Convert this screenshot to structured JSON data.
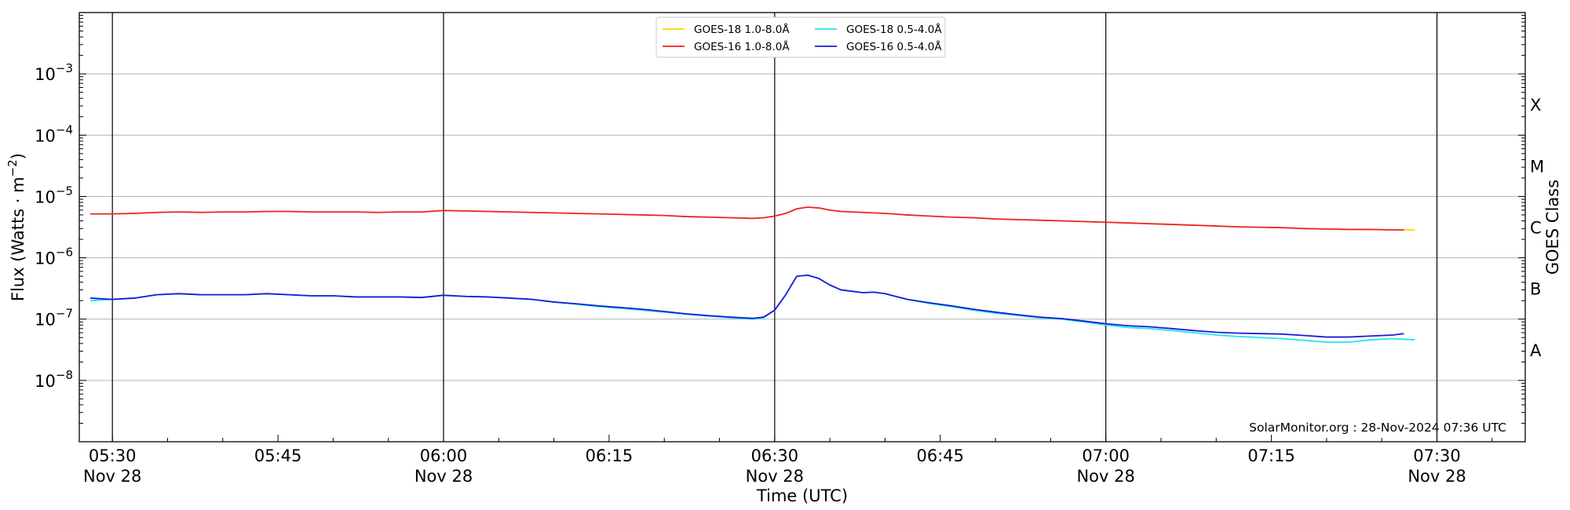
{
  "chart_data": {
    "type": "line",
    "title": "",
    "xlabel": "Time (UTC)",
    "ylabel": "Flux (Watts · m⁻²)",
    "right_label": "GOES Class",
    "y_scale": "log",
    "ylim": [
      1e-09,
      0.01
    ],
    "xlim": [
      "2024-11-28 05:27",
      "2024-11-28 07:38"
    ],
    "y_ticks": [
      {
        "value": 1e-08,
        "base": "10",
        "exp": "−8"
      },
      {
        "value": 1e-07,
        "base": "10",
        "exp": "−7"
      },
      {
        "value": 1e-06,
        "base": "10",
        "exp": "−6"
      },
      {
        "value": 1e-05,
        "base": "10",
        "exp": "−5"
      },
      {
        "value": 0.0001,
        "base": "10",
        "exp": "−4"
      },
      {
        "value": 0.001,
        "base": "10",
        "exp": "−3"
      }
    ],
    "x_ticks": [
      {
        "time": "05:30",
        "label": "05:30",
        "sub": "Nov 28"
      },
      {
        "time": "05:45",
        "label": "05:45",
        "sub": ""
      },
      {
        "time": "06:00",
        "label": "06:00",
        "sub": "Nov 28"
      },
      {
        "time": "06:15",
        "label": "06:15",
        "sub": ""
      },
      {
        "time": "06:30",
        "label": "06:30",
        "sub": "Nov 28"
      },
      {
        "time": "06:45",
        "label": "06:45",
        "sub": ""
      },
      {
        "time": "07:00",
        "label": "07:00",
        "sub": "Nov 28"
      },
      {
        "time": "07:15",
        "label": "07:15",
        "sub": ""
      },
      {
        "time": "07:30",
        "label": "07:30",
        "sub": "Nov 28"
      }
    ],
    "vertical_lines": [
      "05:30",
      "06:00",
      "06:30",
      "07:00",
      "07:30"
    ],
    "goes_classes": [
      {
        "label": "A",
        "value": 3.16e-08
      },
      {
        "label": "B",
        "value": 3.16e-07
      },
      {
        "label": "C",
        "value": 3.16e-06
      },
      {
        "label": "M",
        "value": 3.16e-05
      },
      {
        "label": "X",
        "value": 0.000316
      }
    ],
    "grid": true,
    "legend_position": "top-center",
    "annotation": "SolarMonitor.org : 28-Nov-2024 07:36 UTC",
    "series": [
      {
        "name": "GOES-18 1.0-8.0Å",
        "color": "#ffd700",
        "points": [
          [
            "07:27",
            2.85e-06
          ],
          [
            "07:28",
            2.85e-06
          ]
        ]
      },
      {
        "name": "GOES-16 1.0-8.0Å",
        "color": "#e8261c",
        "points": [
          [
            "05:28",
            5.2e-06
          ],
          [
            "05:30",
            5.2e-06
          ],
          [
            "05:32",
            5.3e-06
          ],
          [
            "05:34",
            5.5e-06
          ],
          [
            "05:36",
            5.6e-06
          ],
          [
            "05:38",
            5.5e-06
          ],
          [
            "05:40",
            5.6e-06
          ],
          [
            "05:42",
            5.6e-06
          ],
          [
            "05:44",
            5.7e-06
          ],
          [
            "05:46",
            5.7e-06
          ],
          [
            "05:48",
            5.6e-06
          ],
          [
            "05:50",
            5.6e-06
          ],
          [
            "05:52",
            5.6e-06
          ],
          [
            "05:54",
            5.5e-06
          ],
          [
            "05:56",
            5.6e-06
          ],
          [
            "05:58",
            5.6e-06
          ],
          [
            "06:00",
            5.9e-06
          ],
          [
            "06:02",
            5.8e-06
          ],
          [
            "06:04",
            5.7e-06
          ],
          [
            "06:06",
            5.6e-06
          ],
          [
            "06:08",
            5.5e-06
          ],
          [
            "06:10",
            5.4e-06
          ],
          [
            "06:12",
            5.3e-06
          ],
          [
            "06:14",
            5.2e-06
          ],
          [
            "06:16",
            5.1e-06
          ],
          [
            "06:18",
            5e-06
          ],
          [
            "06:20",
            4.9e-06
          ],
          [
            "06:22",
            4.7e-06
          ],
          [
            "06:24",
            4.6e-06
          ],
          [
            "06:26",
            4.5e-06
          ],
          [
            "06:28",
            4.4e-06
          ],
          [
            "06:29",
            4.5e-06
          ],
          [
            "06:30",
            4.8e-06
          ],
          [
            "06:31",
            5.3e-06
          ],
          [
            "06:32",
            6.3e-06
          ],
          [
            "06:33",
            6.7e-06
          ],
          [
            "06:34",
            6.5e-06
          ],
          [
            "06:35",
            6e-06
          ],
          [
            "06:36",
            5.7e-06
          ],
          [
            "06:38",
            5.5e-06
          ],
          [
            "06:40",
            5.3e-06
          ],
          [
            "06:42",
            5e-06
          ],
          [
            "06:44",
            4.8e-06
          ],
          [
            "06:46",
            4.6e-06
          ],
          [
            "06:48",
            4.5e-06
          ],
          [
            "06:50",
            4.3e-06
          ],
          [
            "06:52",
            4.2e-06
          ],
          [
            "06:54",
            4.1e-06
          ],
          [
            "06:56",
            4e-06
          ],
          [
            "06:58",
            3.9e-06
          ],
          [
            "07:00",
            3.8e-06
          ],
          [
            "07:02",
            3.7e-06
          ],
          [
            "07:04",
            3.6e-06
          ],
          [
            "07:06",
            3.5e-06
          ],
          [
            "07:08",
            3.4e-06
          ],
          [
            "07:10",
            3.3e-06
          ],
          [
            "07:12",
            3.2e-06
          ],
          [
            "07:14",
            3.15e-06
          ],
          [
            "07:16",
            3.1e-06
          ],
          [
            "07:18",
            3e-06
          ],
          [
            "07:20",
            2.95e-06
          ],
          [
            "07:22",
            2.9e-06
          ],
          [
            "07:24",
            2.9e-06
          ],
          [
            "07:26",
            2.85e-06
          ],
          [
            "07:27",
            2.85e-06
          ]
        ]
      },
      {
        "name": "GOES-18 0.5-4.0Å",
        "color": "#1ee8f0",
        "points": [
          [
            "05:28",
            2e-07
          ],
          [
            "05:30",
            2.1e-07
          ],
          [
            "05:32",
            2.2e-07
          ],
          [
            "05:34",
            2.5e-07
          ],
          [
            "05:36",
            2.6e-07
          ],
          [
            "05:38",
            2.5e-07
          ],
          [
            "05:40",
            2.5e-07
          ],
          [
            "05:42",
            2.5e-07
          ],
          [
            "05:44",
            2.6e-07
          ],
          [
            "05:46",
            2.5e-07
          ],
          [
            "05:48",
            2.4e-07
          ],
          [
            "05:50",
            2.4e-07
          ],
          [
            "05:52",
            2.3e-07
          ],
          [
            "05:54",
            2.3e-07
          ],
          [
            "05:56",
            2.3e-07
          ],
          [
            "05:58",
            2.25e-07
          ],
          [
            "06:00",
            2.45e-07
          ],
          [
            "06:02",
            2.35e-07
          ],
          [
            "06:04",
            2.3e-07
          ],
          [
            "06:06",
            2.2e-07
          ],
          [
            "06:08",
            2.1e-07
          ],
          [
            "06:10",
            1.9e-07
          ],
          [
            "06:12",
            1.75e-07
          ],
          [
            "06:14",
            1.6e-07
          ],
          [
            "06:16",
            1.5e-07
          ],
          [
            "06:18",
            1.4e-07
          ],
          [
            "06:20",
            1.3e-07
          ],
          [
            "06:22",
            1.2e-07
          ],
          [
            "06:24",
            1.12e-07
          ],
          [
            "06:26",
            1.05e-07
          ],
          [
            "06:28",
            1e-07
          ],
          [
            "06:29",
            1.05e-07
          ],
          [
            "06:30",
            1.4e-07
          ],
          [
            "06:31",
            2.5e-07
          ],
          [
            "06:32",
            5e-07
          ],
          [
            "06:33",
            5.2e-07
          ],
          [
            "06:34",
            4.6e-07
          ],
          [
            "06:35",
            3.6e-07
          ],
          [
            "06:36",
            3e-07
          ],
          [
            "06:38",
            2.7e-07
          ],
          [
            "06:39",
            2.75e-07
          ],
          [
            "06:40",
            2.6e-07
          ],
          [
            "06:42",
            2.1e-07
          ],
          [
            "06:44",
            1.8e-07
          ],
          [
            "06:46",
            1.6e-07
          ],
          [
            "06:48",
            1.4e-07
          ],
          [
            "06:50",
            1.25e-07
          ],
          [
            "06:52",
            1.15e-07
          ],
          [
            "06:54",
            1.05e-07
          ],
          [
            "06:56",
            1e-07
          ],
          [
            "06:58",
            9e-08
          ],
          [
            "07:00",
            8e-08
          ],
          [
            "07:02",
            7.3e-08
          ],
          [
            "07:04",
            7e-08
          ],
          [
            "07:06",
            6.5e-08
          ],
          [
            "07:08",
            6e-08
          ],
          [
            "07:10",
            5.5e-08
          ],
          [
            "07:12",
            5.2e-08
          ],
          [
            "07:14",
            5e-08
          ],
          [
            "07:16",
            4.8e-08
          ],
          [
            "07:18",
            4.5e-08
          ],
          [
            "07:20",
            4.2e-08
          ],
          [
            "07:22",
            4.2e-08
          ],
          [
            "07:24",
            4.6e-08
          ],
          [
            "07:26",
            4.8e-08
          ],
          [
            "07:28",
            4.6e-08
          ]
        ]
      },
      {
        "name": "GOES-16 0.5-4.0Å",
        "color": "#1c1cd8",
        "points": [
          [
            "05:28",
            2.2e-07
          ],
          [
            "05:30",
            2.1e-07
          ],
          [
            "05:32",
            2.2e-07
          ],
          [
            "05:34",
            2.5e-07
          ],
          [
            "05:36",
            2.6e-07
          ],
          [
            "05:38",
            2.5e-07
          ],
          [
            "05:40",
            2.5e-07
          ],
          [
            "05:42",
            2.5e-07
          ],
          [
            "05:44",
            2.6e-07
          ],
          [
            "05:46",
            2.5e-07
          ],
          [
            "05:48",
            2.4e-07
          ],
          [
            "05:50",
            2.4e-07
          ],
          [
            "05:52",
            2.3e-07
          ],
          [
            "05:54",
            2.3e-07
          ],
          [
            "05:56",
            2.3e-07
          ],
          [
            "05:58",
            2.25e-07
          ],
          [
            "06:00",
            2.45e-07
          ],
          [
            "06:02",
            2.35e-07
          ],
          [
            "06:04",
            2.3e-07
          ],
          [
            "06:06",
            2.2e-07
          ],
          [
            "06:08",
            2.1e-07
          ],
          [
            "06:10",
            1.9e-07
          ],
          [
            "06:12",
            1.78e-07
          ],
          [
            "06:14",
            1.65e-07
          ],
          [
            "06:16",
            1.55e-07
          ],
          [
            "06:18",
            1.45e-07
          ],
          [
            "06:20",
            1.33e-07
          ],
          [
            "06:22",
            1.22e-07
          ],
          [
            "06:24",
            1.14e-07
          ],
          [
            "06:26",
            1.08e-07
          ],
          [
            "06:28",
            1.03e-07
          ],
          [
            "06:29",
            1.08e-07
          ],
          [
            "06:30",
            1.4e-07
          ],
          [
            "06:31",
            2.5e-07
          ],
          [
            "06:32",
            5e-07
          ],
          [
            "06:33",
            5.2e-07
          ],
          [
            "06:34",
            4.6e-07
          ],
          [
            "06:35",
            3.6e-07
          ],
          [
            "06:36",
            3e-07
          ],
          [
            "06:38",
            2.7e-07
          ],
          [
            "06:39",
            2.75e-07
          ],
          [
            "06:40",
            2.6e-07
          ],
          [
            "06:42",
            2.1e-07
          ],
          [
            "06:44",
            1.85e-07
          ],
          [
            "06:46",
            1.65e-07
          ],
          [
            "06:48",
            1.45e-07
          ],
          [
            "06:50",
            1.3e-07
          ],
          [
            "06:52",
            1.18e-07
          ],
          [
            "06:54",
            1.08e-07
          ],
          [
            "06:56",
            1.02e-07
          ],
          [
            "06:58",
            9.3e-08
          ],
          [
            "07:00",
            8.4e-08
          ],
          [
            "07:02",
            7.8e-08
          ],
          [
            "07:04",
            7.5e-08
          ],
          [
            "07:06",
            7e-08
          ],
          [
            "07:08",
            6.5e-08
          ],
          [
            "07:10",
            6.1e-08
          ],
          [
            "07:12",
            5.9e-08
          ],
          [
            "07:14",
            5.8e-08
          ],
          [
            "07:16",
            5.7e-08
          ],
          [
            "07:18",
            5.4e-08
          ],
          [
            "07:20",
            5.1e-08
          ],
          [
            "07:22",
            5.1e-08
          ],
          [
            "07:24",
            5.3e-08
          ],
          [
            "07:26",
            5.5e-08
          ],
          [
            "07:27",
            5.8e-08
          ]
        ]
      }
    ]
  }
}
